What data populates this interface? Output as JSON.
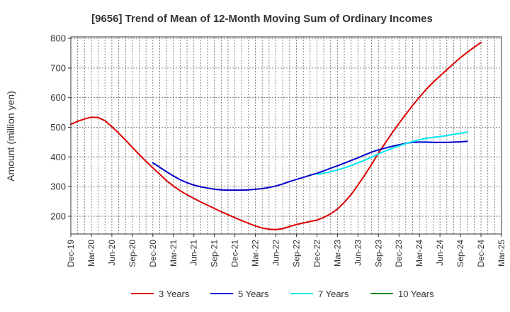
{
  "chart_data": {
    "type": "line",
    "title": "[9656]  Trend of Mean of 12-Month Moving Sum of Ordinary Incomes",
    "xlabel": "",
    "ylabel": "Amount (million yen)",
    "ylim": [
      140,
      805
    ],
    "yticks": [
      200,
      300,
      400,
      500,
      600,
      700,
      800
    ],
    "x_tick_labels": [
      "Dec-19",
      "Mar-20",
      "Jun-20",
      "Sep-20",
      "Dec-20",
      "Mar-21",
      "Jun-21",
      "Sep-21",
      "Dec-21",
      "Mar-22",
      "Jun-22",
      "Sep-22",
      "Dec-22",
      "Mar-23",
      "Jun-23",
      "Sep-23",
      "Dec-23",
      "Mar-24",
      "Jun-24",
      "Sep-24",
      "Dec-24",
      "Mar-25"
    ],
    "x_range_months": [
      0,
      63
    ],
    "grid": true,
    "legend_position": "bottom",
    "series": [
      {
        "name": "3 Years",
        "color": "#dd0000",
        "points": [
          [
            0,
            510
          ],
          [
            1,
            520
          ],
          [
            2,
            528
          ],
          [
            3,
            534
          ],
          [
            4,
            533
          ],
          [
            5,
            522
          ],
          [
            6,
            502
          ],
          [
            7,
            480
          ],
          [
            8,
            457
          ],
          [
            9,
            432
          ],
          [
            10,
            408
          ],
          [
            11,
            385
          ],
          [
            12,
            363
          ],
          [
            13,
            342
          ],
          [
            14,
            320
          ],
          [
            15,
            302
          ],
          [
            16,
            286
          ],
          [
            17,
            272
          ],
          [
            18,
            260
          ],
          [
            19,
            248
          ],
          [
            20,
            237
          ],
          [
            21,
            226
          ],
          [
            22,
            215
          ],
          [
            23,
            205
          ],
          [
            24,
            195
          ],
          [
            25,
            185
          ],
          [
            26,
            176
          ],
          [
            27,
            167
          ],
          [
            28,
            160
          ],
          [
            29,
            156
          ],
          [
            30,
            155
          ],
          [
            31,
            158
          ],
          [
            32,
            165
          ],
          [
            33,
            172
          ],
          [
            34,
            177
          ],
          [
            35,
            182
          ],
          [
            36,
            187
          ],
          [
            37,
            196
          ],
          [
            38,
            208
          ],
          [
            39,
            224
          ],
          [
            40,
            247
          ],
          [
            41,
            273
          ],
          [
            42,
            305
          ],
          [
            43,
            339
          ],
          [
            44,
            375
          ],
          [
            45,
            413
          ],
          [
            46,
            447
          ],
          [
            47,
            481
          ],
          [
            48,
            513
          ],
          [
            49,
            544
          ],
          [
            50,
            574
          ],
          [
            51,
            602
          ],
          [
            52,
            628
          ],
          [
            53,
            652
          ],
          [
            54,
            673
          ],
          [
            55,
            694
          ],
          [
            56,
            715
          ],
          [
            57,
            735
          ],
          [
            58,
            753
          ],
          [
            59,
            770
          ],
          [
            60,
            786
          ]
        ]
      },
      {
        "name": "5 Years",
        "color": "#0000cc",
        "points": [
          [
            12,
            380
          ],
          [
            13,
            365
          ],
          [
            14,
            350
          ],
          [
            15,
            336
          ],
          [
            16,
            323
          ],
          [
            17,
            313
          ],
          [
            18,
            305
          ],
          [
            19,
            299
          ],
          [
            20,
            295
          ],
          [
            21,
            291
          ],
          [
            22,
            289
          ],
          [
            23,
            288
          ],
          [
            24,
            288
          ],
          [
            25,
            288
          ],
          [
            26,
            289
          ],
          [
            27,
            291
          ],
          [
            28,
            293
          ],
          [
            29,
            297
          ],
          [
            30,
            302
          ],
          [
            31,
            309
          ],
          [
            32,
            317
          ],
          [
            33,
            324
          ],
          [
            34,
            331
          ],
          [
            35,
            338
          ],
          [
            36,
            345
          ],
          [
            37,
            353
          ],
          [
            38,
            362
          ],
          [
            39,
            370
          ],
          [
            40,
            379
          ],
          [
            41,
            388
          ],
          [
            42,
            397
          ],
          [
            43,
            407
          ],
          [
            44,
            416
          ],
          [
            45,
            424
          ],
          [
            46,
            430
          ],
          [
            47,
            436
          ],
          [
            48,
            441
          ],
          [
            49,
            446
          ],
          [
            50,
            449
          ],
          [
            51,
            450
          ],
          [
            52,
            450
          ],
          [
            53,
            449
          ],
          [
            54,
            449
          ],
          [
            55,
            449
          ],
          [
            56,
            450
          ],
          [
            57,
            451
          ],
          [
            58,
            453
          ]
        ]
      },
      {
        "name": "7 Years",
        "color": "#00e5ee",
        "points": [
          [
            36,
            341
          ],
          [
            37,
            345
          ],
          [
            38,
            350
          ],
          [
            39,
            356
          ],
          [
            40,
            363
          ],
          [
            41,
            371
          ],
          [
            42,
            380
          ],
          [
            43,
            389
          ],
          [
            44,
            399
          ],
          [
            45,
            410
          ],
          [
            46,
            420
          ],
          [
            47,
            429
          ],
          [
            48,
            437
          ],
          [
            49,
            445
          ],
          [
            50,
            452
          ],
          [
            51,
            458
          ],
          [
            52,
            463
          ],
          [
            53,
            466
          ],
          [
            54,
            469
          ],
          [
            55,
            472
          ],
          [
            56,
            476
          ],
          [
            57,
            480
          ],
          [
            58,
            484
          ]
        ]
      },
      {
        "name": "10 Years",
        "color": "#228b22",
        "points": []
      }
    ]
  }
}
